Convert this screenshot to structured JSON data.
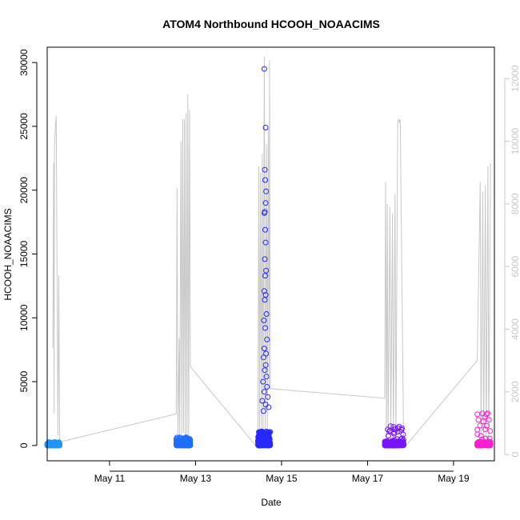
{
  "chart_data": {
    "type": "scatter",
    "title": "ATOM4 Northbound HCOOH_NOAACIMS",
    "xlabel": "Date",
    "ylabel": "HCOOH_NOAACIMS",
    "x_range_days": [
      9.55,
      19.95
    ],
    "ylim": [
      -1200,
      31200
    ],
    "y_ticks": [
      0,
      5000,
      10000,
      15000,
      20000,
      25000,
      30000
    ],
    "x_ticks": [
      {
        "day": 11,
        "label": "May 11"
      },
      {
        "day": 13,
        "label": "May 13"
      },
      {
        "day": 15,
        "label": "May 15"
      },
      {
        "day": 17,
        "label": "May 17"
      },
      {
        "day": 19,
        "label": "May 19"
      }
    ],
    "secondary_axis": {
      "ylim": [
        -200,
        13000
      ],
      "ticks": [
        0,
        2000,
        4000,
        6000,
        8000,
        10000,
        12000
      ],
      "color": "#c8c8c8",
      "series_color": "#c8c8c8",
      "profile": [
        [
          9.68,
          3400
        ],
        [
          9.7,
          9300
        ],
        [
          9.71,
          1300
        ],
        [
          9.72,
          9800
        ],
        [
          9.73,
          10100
        ],
        [
          9.74,
          10500
        ],
        [
          9.75,
          10600
        ],
        [
          9.76,
          10800
        ],
        [
          9.8,
          600
        ],
        [
          9.82,
          5700
        ],
        [
          9.84,
          400
        ],
        [
          12.55,
          1300
        ],
        [
          12.57,
          8500
        ],
        [
          12.59,
          600
        ],
        [
          12.62,
          3700
        ],
        [
          12.63,
          400
        ],
        [
          12.66,
          10000
        ],
        [
          12.68,
          600
        ],
        [
          12.7,
          10700
        ],
        [
          12.72,
          700
        ],
        [
          12.74,
          10700
        ],
        [
          12.76,
          400
        ],
        [
          12.78,
          10900
        ],
        [
          12.8,
          500
        ],
        [
          12.82,
          11500
        ],
        [
          12.84,
          500
        ],
        [
          12.86,
          11000
        ],
        [
          12.88,
          2800
        ],
        [
          14.45,
          200
        ],
        [
          14.47,
          9200
        ],
        [
          14.49,
          600
        ],
        [
          14.51,
          9000
        ],
        [
          14.53,
          800
        ],
        [
          14.55,
          9600
        ],
        [
          14.57,
          700
        ],
        [
          14.6,
          12700
        ],
        [
          14.62,
          500
        ],
        [
          14.65,
          9900
        ],
        [
          14.67,
          800
        ],
        [
          14.69,
          10400
        ],
        [
          14.71,
          2200
        ],
        [
          14.72,
          12600
        ],
        [
          14.74,
          2100
        ],
        [
          17.4,
          1800
        ],
        [
          17.42,
          8700
        ],
        [
          17.44,
          300
        ],
        [
          17.46,
          8000
        ],
        [
          17.48,
          800
        ],
        [
          17.52,
          7900
        ],
        [
          17.54,
          500
        ],
        [
          17.58,
          7700
        ],
        [
          17.6,
          300
        ],
        [
          17.64,
          8300
        ],
        [
          17.66,
          300
        ],
        [
          17.7,
          10600
        ],
        [
          17.72,
          10700
        ],
        [
          17.74,
          10600
        ],
        [
          17.76,
          10700
        ],
        [
          17.84,
          200
        ],
        [
          19.55,
          3000
        ],
        [
          19.62,
          8700
        ],
        [
          19.64,
          300
        ],
        [
          19.68,
          8400
        ],
        [
          19.7,
          200
        ],
        [
          19.74,
          8600
        ],
        [
          19.76,
          400
        ],
        [
          19.8,
          9200
        ],
        [
          19.82,
          300
        ],
        [
          19.86,
          9300
        ]
      ]
    },
    "series": [
      {
        "color": "#1E96FF",
        "segments": [
          [
            9.55,
            9.84,
            0,
            150,
            280
          ]
        ]
      },
      {
        "color": "#1E6EFF",
        "segments": [
          [
            12.55,
            12.88,
            0,
            400,
            650
          ]
        ]
      },
      {
        "color": "#2828FF",
        "segments": [
          [
            14.45,
            14.74,
            0,
            1100,
            900
          ]
        ],
        "outliers": [
          [
            14.6,
            29500
          ],
          [
            14.63,
            24900
          ],
          [
            14.61,
            21600
          ],
          [
            14.62,
            20800
          ],
          [
            14.64,
            19900
          ],
          [
            14.63,
            19000
          ],
          [
            14.61,
            18300
          ],
          [
            14.6,
            18200
          ],
          [
            14.62,
            16900
          ],
          [
            14.63,
            15900
          ],
          [
            14.61,
            14600
          ],
          [
            14.64,
            13700
          ],
          [
            14.62,
            13300
          ],
          [
            14.6,
            12100
          ],
          [
            14.63,
            11800
          ],
          [
            14.61,
            11400
          ],
          [
            14.65,
            10300
          ],
          [
            14.59,
            9800
          ],
          [
            14.62,
            9200
          ],
          [
            14.66,
            8300
          ],
          [
            14.6,
            7600
          ],
          [
            14.64,
            7200
          ],
          [
            14.58,
            6900
          ],
          [
            14.63,
            6300
          ],
          [
            14.61,
            5900
          ],
          [
            14.65,
            5400
          ],
          [
            14.57,
            5000
          ],
          [
            14.66,
            4600
          ],
          [
            14.6,
            4200
          ],
          [
            14.68,
            3800
          ],
          [
            14.55,
            3500
          ],
          [
            14.63,
            3200
          ],
          [
            14.7,
            3000
          ],
          [
            14.58,
            2700
          ]
        ]
      },
      {
        "color": "#7814FF",
        "segments": [
          [
            17.4,
            17.84,
            0,
            350,
            1600
          ]
        ]
      },
      {
        "color": "#FF1ED2",
        "segments": [
          [
            19.55,
            19.86,
            0,
            300,
            2600
          ]
        ]
      }
    ]
  }
}
